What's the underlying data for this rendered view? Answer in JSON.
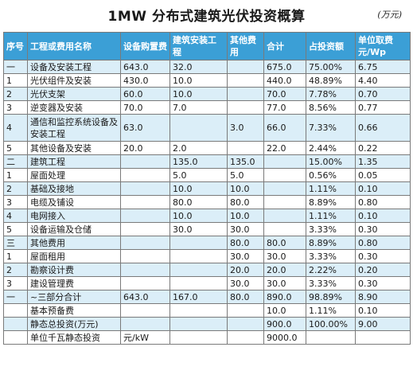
{
  "title": "1MW 分布式建筑光伏投资概算",
  "unit": "(万元)",
  "headers": [
    "序号",
    "工程或费用名称",
    "设备购置费",
    "建筑安装工程",
    "其他费用",
    "合计",
    "占投资额",
    "单位取费元/Wp"
  ],
  "rows": [
    [
      "一",
      "设备及安装工程",
      "643.0",
      "32.0",
      "",
      "675.0",
      "75.00%",
      "6.75"
    ],
    [
      "1",
      "光伏组件及安装",
      "430.0",
      "10.0",
      "",
      "440.0",
      "48.89%",
      "4.40"
    ],
    [
      "2",
      "光伏支架",
      "60.0",
      "10.0",
      "",
      "70.0",
      "7.78%",
      "0.70"
    ],
    [
      "3",
      "逆变器及安装",
      "70.0",
      "7.0",
      "",
      "77.0",
      "8.56%",
      "0.77"
    ],
    [
      "4",
      "通信和监控系统设备及安装工程",
      "63.0",
      "",
      "3.0",
      "66.0",
      "7.33%",
      "0.66"
    ],
    [
      "5",
      "其他设备及安装",
      "20.0",
      "2.0",
      "",
      "22.0",
      "2.44%",
      "0.22"
    ],
    [
      "二",
      "建筑工程",
      "",
      "135.0",
      "135.0",
      "",
      "15.00%",
      "1.35"
    ],
    [
      "1",
      "屋面处理",
      "",
      "5.0",
      "5.0",
      "",
      "0.56%",
      "0.05"
    ],
    [
      "2",
      "基础及接地",
      "",
      "10.0",
      "10.0",
      "",
      "1.11%",
      "0.10"
    ],
    [
      "3",
      "电缆及铺设",
      "",
      "80.0",
      "80.0",
      "",
      "8.89%",
      "0.80"
    ],
    [
      "4",
      "电网接入",
      "",
      "10.0",
      "10.0",
      "",
      "1.11%",
      "0.10"
    ],
    [
      "5",
      "设备运输及仓储",
      "",
      "30.0",
      "30.0",
      "",
      "3.33%",
      "0.30"
    ],
    [
      "三",
      "其他费用",
      "",
      "",
      "80.0",
      "80.0",
      "8.89%",
      "0.80"
    ],
    [
      "1",
      "屋面租用",
      "",
      "",
      "30.0",
      "30.0",
      "3.33%",
      "0.30"
    ],
    [
      "2",
      "勘察设计费",
      "",
      "",
      "20.0",
      "20.0",
      "2.22%",
      "0.20"
    ],
    [
      "3",
      "建设管理费",
      "",
      "",
      "30.0",
      "30.0",
      "3.33%",
      "0.30"
    ],
    [
      "一",
      "~三部分合计",
      "643.0",
      "167.0",
      "80.0",
      "890.0",
      "98.89%",
      "8.90"
    ],
    [
      "",
      "基本预备费",
      "",
      "",
      "",
      "10.0",
      "1.11%",
      "0.10"
    ],
    [
      "",
      "静态总投资(万元)",
      "",
      "",
      "",
      "900.0",
      "100.00%",
      "9.00"
    ],
    [
      "",
      "单位千瓦静态投资",
      "元/kW",
      "",
      "",
      "9000.0",
      "",
      ""
    ]
  ]
}
